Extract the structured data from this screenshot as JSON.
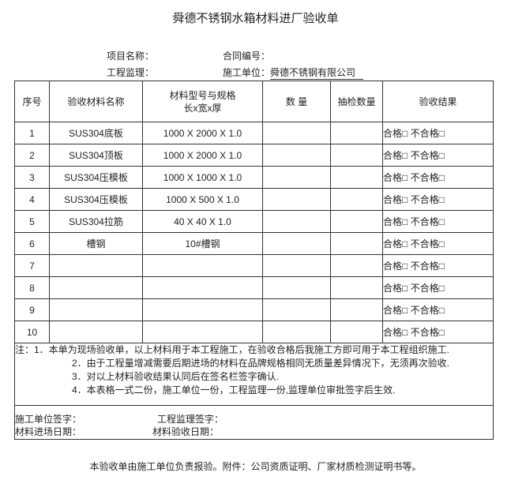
{
  "title": "舜德不锈钢水箱材料进厂验收单",
  "meta": {
    "project_label": "项目名称：",
    "contract_label": "合同编号：",
    "supervisor_label": "工程监理：",
    "contractor_label": "施工单位：",
    "contractor": "舜德不锈钢有限公司"
  },
  "table": {
    "headers": [
      "序号",
      "验收材料名称",
      [
        "材料型号与规格",
        "长x宽x厚"
      ],
      "数 量",
      "抽检数量",
      "验收结果"
    ],
    "rows": [
      {
        "no": "1",
        "name": "SUS304底板",
        "spec": "1000 X 2000 X 1.0",
        "result": "合格□  不合格□"
      },
      {
        "no": "2",
        "name": "SUS304顶板",
        "spec": "1000 X 2000 X 1.0",
        "result": "合格□  不合格□"
      },
      {
        "no": "3",
        "name": "SUS304压模板",
        "spec": "1000 X 1000 X 1.0",
        "result": "合格□  不合格□"
      },
      {
        "no": "4",
        "name": "SUS304压模板",
        "spec": "1000 X 500 X 1.0",
        "result": "合格□  不合格□"
      },
      {
        "no": "5",
        "name": "SUS304拉筋",
        "spec": "40 X 40 X 1.0",
        "result": "合格□  不合格□"
      },
      {
        "no": "6",
        "name": "槽钢",
        "spec": "10#槽钢",
        "result": "合格□  不合格□"
      },
      {
        "no": "7",
        "result": "合格□  不合格□"
      },
      {
        "no": "8",
        "result": "合格□  不合格□"
      },
      {
        "no": "9",
        "result": "合格□  不合格□"
      },
      {
        "no": "10",
        "result": "合格□  不合格□"
      }
    ],
    "notes": [
      "注：1．本单为现场验收单，以上材料用于本工程施工，在验收合格后我施工方即可用于本工程组织施工.",
      "2．由于工程量增减需要后期进场的材料在品牌规格相同无质量差异情况下，无须再次验收.",
      "3．对以上材料验收结果认同后在签名栏签字确认.",
      "4．本表格一式二份，施工单位一份，工程监理一份,监理单位审批签字后生效."
    ],
    "signatures": [
      "施工单位签字：",
      "工程监理签字：",
      "材料进场日期：",
      "材料验收日期："
    ]
  },
  "footer": "本验收单由施工单位负责报验。附件：公司资质证明、厂家材质检测证明书等。"
}
